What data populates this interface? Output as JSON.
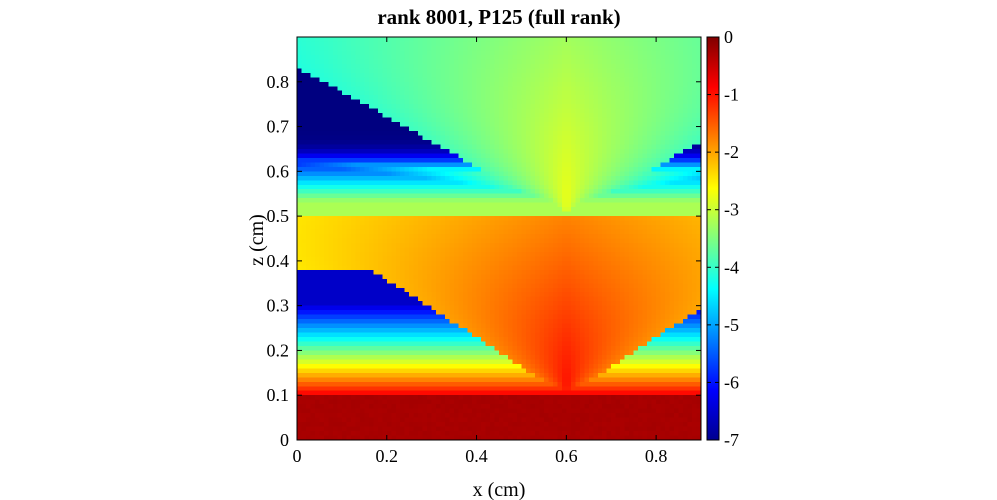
{
  "chart_data": {
    "type": "heatmap",
    "title": "rank 8001, P125 (full rank)",
    "xlabel": "x (cm)",
    "ylabel": "z (cm)",
    "xlim": [
      0,
      0.9
    ],
    "ylim": [
      0,
      0.9
    ],
    "xticks": [
      0,
      0.2,
      0.4,
      0.6,
      0.8
    ],
    "xtick_labels": [
      "0",
      "0.2",
      "0.4",
      "0.6",
      "0.8"
    ],
    "yticks": [
      0,
      0.1,
      0.2,
      0.3,
      0.4,
      0.5,
      0.6,
      0.7,
      0.8
    ],
    "ytick_labels": [
      "0",
      "0.1",
      "0.2",
      "0.3",
      "0.4",
      "0.5",
      "0.6",
      "0.7",
      "0.8"
    ],
    "colorbar": {
      "colormap": "jet",
      "clim": [
        -7,
        0
      ],
      "ticks": [
        0,
        -1,
        -2,
        -3,
        -4,
        -5,
        -6,
        -7
      ],
      "tick_labels": [
        "0",
        "-1",
        "-2",
        "-3",
        "-4",
        "-5",
        "-6",
        "-7"
      ]
    },
    "field_description": {
      "source_x": 0.6,
      "source_layer_z": [
        0,
        0.1
      ],
      "source_layer_value": -0.3,
      "interface_z": 0.5,
      "background_value": -7
    },
    "grid": false
  }
}
